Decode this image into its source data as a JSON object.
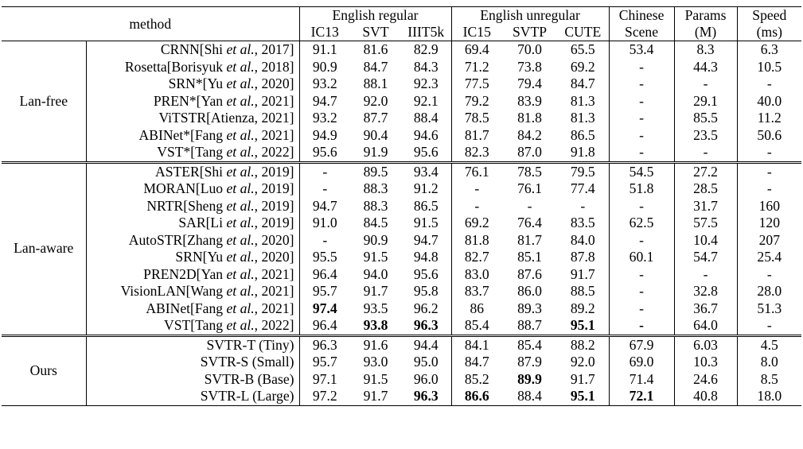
{
  "header": {
    "method": "method",
    "group_english_regular": "English regular",
    "group_english_unregular": "English unregular",
    "chinese_line1": "Chinese",
    "chinese_line2": "Scene",
    "params_line1": "Params",
    "params_line2": "(M)",
    "speed_line1": "Speed",
    "speed_line2": "(ms)",
    "columns": [
      "IC13",
      "SVT",
      "IIIT5k",
      "IC15",
      "SVTP",
      "CUTE"
    ]
  },
  "groups": [
    {
      "label": "Lan-free",
      "rows": [
        {
          "name": "CRNN",
          "ref_a": "[Shi ",
          "ref_etal": "et al.",
          "ref_b": ", 2017]",
          "values": [
            "91.1",
            "81.6",
            "82.9",
            "69.4",
            "70.0",
            "65.5",
            "53.4",
            "8.3",
            "6.3"
          ],
          "bold": []
        },
        {
          "name": "Rosetta",
          "ref_a": "[Borisyuk ",
          "ref_etal": "et al.",
          "ref_b": ", 2018]",
          "values": [
            "90.9",
            "84.7",
            "84.3",
            "71.2",
            "73.8",
            "69.2",
            "-",
            "44.3",
            "10.5"
          ],
          "bold": []
        },
        {
          "name": "SRN*",
          "ref_a": "[Yu ",
          "ref_etal": "et al.",
          "ref_b": ", 2020]",
          "values": [
            "93.2",
            "88.1",
            "92.3",
            "77.5",
            "79.4",
            "84.7",
            "-",
            "-",
            "-"
          ],
          "bold": []
        },
        {
          "name": "PREN*",
          "ref_a": "[Yan ",
          "ref_etal": "et al.",
          "ref_b": ", 2021]",
          "values": [
            "94.7",
            "92.0",
            "92.1",
            "79.2",
            "83.9",
            "81.3",
            "-",
            "29.1",
            "40.0"
          ],
          "bold": []
        },
        {
          "name": "ViTSTR",
          "ref_a": "[Atienza, 2021]",
          "ref_etal": "",
          "ref_b": "",
          "values": [
            "93.2",
            "87.7",
            "88.4",
            "78.5",
            "81.8",
            "81.3",
            "-",
            "85.5",
            "11.2"
          ],
          "bold": []
        },
        {
          "name": "ABINet*",
          "ref_a": "[Fang ",
          "ref_etal": "et al.",
          "ref_b": ", 2021]",
          "values": [
            "94.9",
            "90.4",
            "94.6",
            "81.7",
            "84.2",
            "86.5",
            "-",
            "23.5",
            "50.6"
          ],
          "bold": []
        },
        {
          "name": "VST*",
          "ref_a": "[Tang ",
          "ref_etal": "et al.",
          "ref_b": ", 2022]",
          "values": [
            "95.6",
            "91.9",
            "95.6",
            "82.3",
            "87.0",
            "91.8",
            "-",
            "-",
            "-"
          ],
          "bold": []
        }
      ]
    },
    {
      "label": "Lan-aware",
      "rows": [
        {
          "name": "ASTER",
          "ref_a": "[Shi ",
          "ref_etal": "et al.",
          "ref_b": ", 2019]",
          "values": [
            "-",
            "89.5",
            "93.4",
            "76.1",
            "78.5",
            "79.5",
            "54.5",
            "27.2",
            "-"
          ],
          "bold": []
        },
        {
          "name": "MORAN",
          "ref_a": "[Luo ",
          "ref_etal": "et al.",
          "ref_b": ", 2019]",
          "values": [
            "-",
            "88.3",
            "91.2",
            "-",
            "76.1",
            "77.4",
            "51.8",
            "28.5",
            "-"
          ],
          "bold": []
        },
        {
          "name": "NRTR",
          "ref_a": "[Sheng ",
          "ref_etal": "et al.",
          "ref_b": ", 2019]",
          "values": [
            "94.7",
            "88.3",
            "86.5",
            "-",
            "-",
            "-",
            "-",
            "31.7",
            "160"
          ],
          "bold": []
        },
        {
          "name": "SAR",
          "ref_a": "[Li ",
          "ref_etal": "et al.",
          "ref_b": ", 2019]",
          "values": [
            "91.0",
            "84.5",
            "91.5",
            "69.2",
            "76.4",
            "83.5",
            "62.5",
            "57.5",
            "120"
          ],
          "bold": []
        },
        {
          "name": "AutoSTR",
          "ref_a": "[Zhang ",
          "ref_etal": "et al.",
          "ref_b": ", 2020]",
          "values": [
            "-",
            "90.9",
            "94.7",
            "81.8",
            "81.7",
            "84.0",
            "-",
            "10.4",
            "207"
          ],
          "bold": []
        },
        {
          "name": "SRN",
          "ref_a": "[Yu ",
          "ref_etal": "et al.",
          "ref_b": ", 2020]",
          "values": [
            "95.5",
            "91.5",
            "94.8",
            "82.7",
            "85.1",
            "87.8",
            "60.1",
            "54.7",
            "25.4"
          ],
          "bold": []
        },
        {
          "name": "PREN2D",
          "ref_a": "[Yan ",
          "ref_etal": "et al.",
          "ref_b": ", 2021]",
          "values": [
            "96.4",
            "94.0",
            "95.6",
            "83.0",
            "87.6",
            "91.7",
            "-",
            "-",
            "-"
          ],
          "bold": []
        },
        {
          "name": "VisionLAN",
          "ref_a": "[Wang ",
          "ref_etal": "et al.",
          "ref_b": ", 2021]",
          "values": [
            "95.7",
            "91.7",
            "95.8",
            "83.7",
            "86.0",
            "88.5",
            "-",
            "32.8",
            "28.0"
          ],
          "bold": []
        },
        {
          "name": "ABINet",
          "ref_a": "[Fang ",
          "ref_etal": "et al.",
          "ref_b": ", 2021]",
          "values": [
            "97.4",
            "93.5",
            "96.2",
            "86",
            "89.3",
            "89.2",
            "-",
            "36.7",
            "51.3"
          ],
          "bold": [
            0
          ]
        },
        {
          "name": "VST",
          "ref_a": "[Tang ",
          "ref_etal": "et al.",
          "ref_b": ", 2022]",
          "values": [
            "96.4",
            "93.8",
            "96.3",
            "85.4",
            "88.7",
            "95.1",
            "-",
            "64.0",
            "-"
          ],
          "bold": [
            1,
            2,
            5,
            6
          ]
        }
      ]
    },
    {
      "label": "Ours",
      "rows": [
        {
          "name": "SVTR-T (Tiny)",
          "ref_a": "",
          "ref_etal": "",
          "ref_b": "",
          "values": [
            "96.3",
            "91.6",
            "94.4",
            "84.1",
            "85.4",
            "88.2",
            "67.9",
            "6.03",
            "4.5"
          ],
          "bold": []
        },
        {
          "name": "SVTR-S (Small)",
          "ref_a": "",
          "ref_etal": "",
          "ref_b": "",
          "values": [
            "95.7",
            "93.0",
            "95.0",
            "84.7",
            "87.9",
            "92.0",
            "69.0",
            "10.3",
            "8.0"
          ],
          "bold": []
        },
        {
          "name": "SVTR-B (Base)",
          "ref_a": "",
          "ref_etal": "",
          "ref_b": "",
          "values": [
            "97.1",
            "91.5",
            "96.0",
            "85.2",
            "89.9",
            "91.7",
            "71.4",
            "24.6",
            "8.5"
          ],
          "bold": [
            4
          ]
        },
        {
          "name": "SVTR-L (Large)",
          "ref_a": "",
          "ref_etal": "",
          "ref_b": "",
          "values": [
            "97.2",
            "91.7",
            "96.3",
            "86.6",
            "88.4",
            "95.1",
            "72.1",
            "40.8",
            "18.0"
          ],
          "bold": [
            2,
            3,
            5,
            6
          ]
        }
      ]
    }
  ]
}
